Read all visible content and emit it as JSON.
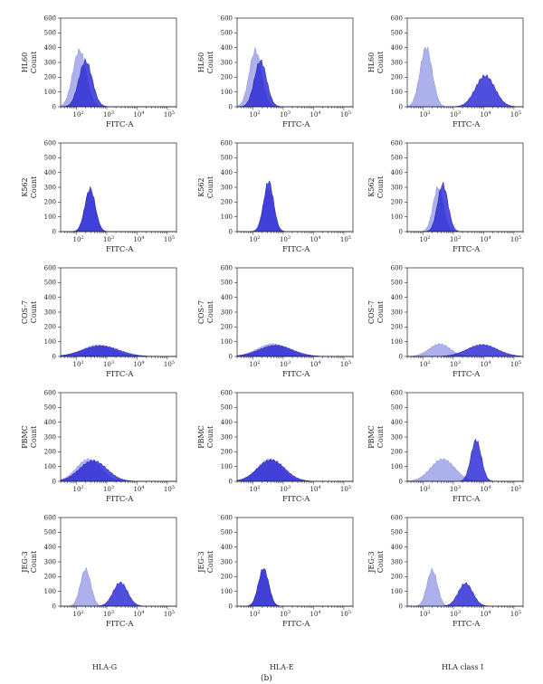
{
  "figure": {
    "panel_label": "(b)",
    "column_titles": [
      "HLA-G",
      "HLA-E",
      "HLA class I"
    ],
    "row_labels": [
      "HL60",
      "K562",
      "COS-7",
      "PBMC",
      "JEG-3"
    ],
    "colors": {
      "control": "#a3a8ea",
      "antibody": "#2a28d6",
      "axis": "#222222"
    }
  },
  "chart_data": [
    {
      "type": "area",
      "title": "",
      "ylabel": [
        "HL60",
        "Count"
      ],
      "xlabel": "FITC-A",
      "xscale": "log",
      "xlim": [
        30,
        200000
      ],
      "ylim": [
        0,
        600
      ],
      "yticks": [
        0,
        100,
        200,
        300,
        400,
        500,
        600
      ],
      "xticks": [
        "10^2",
        "10^3",
        "10^4",
        "10^5"
      ],
      "series": [
        {
          "log10_center": 2.1,
          "width": 0.22,
          "peak": 380
        },
        {
          "log10_center": 2.3,
          "width": 0.22,
          "peak": 310
        }
      ]
    },
    {
      "type": "area",
      "title": "",
      "ylabel": [
        "HL60",
        "Count"
      ],
      "xlabel": "FITC-A",
      "xscale": "log",
      "xlim": [
        30,
        200000
      ],
      "ylim": [
        0,
        600
      ],
      "yticks": [
        0,
        100,
        200,
        300,
        400,
        500,
        600
      ],
      "xticks": [
        "10^2",
        "10^3",
        "10^4",
        "10^5"
      ],
      "series": [
        {
          "log10_center": 2.08,
          "width": 0.2,
          "peak": 380
        },
        {
          "log10_center": 2.25,
          "width": 0.2,
          "peak": 310
        }
      ]
    },
    {
      "type": "area",
      "title": "",
      "ylabel": [
        "HL60",
        "Count"
      ],
      "xlabel": "FITC-A",
      "xscale": "log",
      "xlim": [
        30,
        200000
      ],
      "ylim": [
        0,
        600
      ],
      "yticks": [
        0,
        100,
        200,
        300,
        400,
        500,
        600
      ],
      "xticks": [
        "10^2",
        "10^3",
        "10^4",
        "10^5"
      ],
      "series": [
        {
          "log10_center": 2.1,
          "width": 0.2,
          "peak": 400
        },
        {
          "log10_center": 4.05,
          "width": 0.32,
          "peak": 210
        }
      ]
    },
    {
      "type": "area",
      "title": "",
      "ylabel": [
        "K562",
        "Count"
      ],
      "xlabel": "FITC-A",
      "xscale": "log",
      "xlim": [
        30,
        200000
      ],
      "ylim": [
        0,
        600
      ],
      "yticks": [
        0,
        100,
        200,
        300,
        400,
        500,
        600
      ],
      "xticks": [
        "10^2",
        "10^3",
        "10^4",
        "10^5"
      ],
      "series": [
        {
          "log10_center": 2.45,
          "width": 0.17,
          "peak": 280
        },
        {
          "log10_center": 2.45,
          "width": 0.17,
          "peak": 290
        }
      ]
    },
    {
      "type": "area",
      "title": "",
      "ylabel": [
        "K562",
        "Count"
      ],
      "xlabel": "FITC-A",
      "xscale": "log",
      "xlim": [
        30,
        200000
      ],
      "ylim": [
        0,
        600
      ],
      "yticks": [
        0,
        100,
        200,
        300,
        400,
        500,
        600
      ],
      "xticks": [
        "10^2",
        "10^3",
        "10^4",
        "10^5"
      ],
      "series": [
        {
          "log10_center": 2.5,
          "width": 0.17,
          "peak": 290
        },
        {
          "log10_center": 2.52,
          "width": 0.16,
          "peak": 340
        }
      ]
    },
    {
      "type": "area",
      "title": "",
      "ylabel": [
        "K562",
        "Count"
      ],
      "xlabel": "FITC-A",
      "xscale": "log",
      "xlim": [
        30,
        200000
      ],
      "ylim": [
        0,
        600
      ],
      "yticks": [
        0,
        100,
        200,
        300,
        400,
        500,
        600
      ],
      "xticks": [
        "10^2",
        "10^3",
        "10^4",
        "10^5"
      ],
      "series": [
        {
          "log10_center": 2.5,
          "width": 0.17,
          "peak": 300
        },
        {
          "log10_center": 2.65,
          "width": 0.17,
          "peak": 320
        }
      ]
    },
    {
      "type": "area",
      "title": "",
      "ylabel": [
        "COS-7",
        "Count"
      ],
      "xlabel": "FITC-A",
      "xscale": "log",
      "xlim": [
        30,
        200000
      ],
      "ylim": [
        0,
        600
      ],
      "yticks": [
        0,
        100,
        200,
        300,
        400,
        500,
        600
      ],
      "xticks": [
        "10^2",
        "10^3",
        "10^4",
        "10^5"
      ],
      "series": [
        {
          "log10_center": 2.7,
          "width": 0.5,
          "peak": 78
        },
        {
          "log10_center": 2.8,
          "width": 0.6,
          "peak": 72
        }
      ]
    },
    {
      "type": "area",
      "title": "",
      "ylabel": [
        "COS-7",
        "Count"
      ],
      "xlabel": "FITC-A",
      "xscale": "log",
      "xlim": [
        30,
        200000
      ],
      "ylim": [
        0,
        600
      ],
      "yticks": [
        0,
        100,
        200,
        300,
        400,
        500,
        600
      ],
      "xticks": [
        "10^2",
        "10^3",
        "10^4",
        "10^5"
      ],
      "series": [
        {
          "log10_center": 2.65,
          "width": 0.5,
          "peak": 85
        },
        {
          "log10_center": 2.75,
          "width": 0.55,
          "peak": 75
        }
      ]
    },
    {
      "type": "area",
      "title": "",
      "ylabel": [
        "COS-7",
        "Count"
      ],
      "xlabel": "FITC-A",
      "xscale": "log",
      "xlim": [
        30,
        200000
      ],
      "ylim": [
        0,
        600
      ],
      "yticks": [
        0,
        100,
        200,
        300,
        400,
        500,
        600
      ],
      "xticks": [
        "10^2",
        "10^3",
        "10^4",
        "10^5"
      ],
      "series": [
        {
          "log10_center": 2.55,
          "width": 0.35,
          "peak": 85
        },
        {
          "log10_center": 3.95,
          "width": 0.5,
          "peak": 80
        }
      ]
    },
    {
      "type": "area",
      "title": "",
      "ylabel": [
        "PBMC",
        "Count"
      ],
      "xlabel": "FITC-A",
      "xscale": "log",
      "xlim": [
        30,
        200000
      ],
      "ylim": [
        0,
        600
      ],
      "yticks": [
        0,
        100,
        200,
        300,
        400,
        500,
        600
      ],
      "xticks": [
        "10^2",
        "10^3",
        "10^4",
        "10^5"
      ],
      "series": [
        {
          "log10_center": 2.4,
          "width": 0.4,
          "peak": 150
        },
        {
          "log10_center": 2.55,
          "width": 0.45,
          "peak": 140
        }
      ]
    },
    {
      "type": "area",
      "title": "",
      "ylabel": [
        "PBMC",
        "Count"
      ],
      "xlabel": "FITC-A",
      "xscale": "log",
      "xlim": [
        30,
        200000
      ],
      "ylim": [
        0,
        600
      ],
      "yticks": [
        0,
        100,
        200,
        300,
        400,
        500,
        600
      ],
      "xticks": [
        "10^2",
        "10^3",
        "10^4",
        "10^5"
      ],
      "series": [
        {
          "log10_center": 2.55,
          "width": 0.4,
          "peak": 150
        },
        {
          "log10_center": 2.6,
          "width": 0.45,
          "peak": 145
        }
      ]
    },
    {
      "type": "area",
      "title": "",
      "ylabel": [
        "PBMC",
        "Count"
      ],
      "xlabel": "FITC-A",
      "xscale": "log",
      "xlim": [
        30,
        200000
      ],
      "ylim": [
        0,
        600
      ],
      "yticks": [
        0,
        100,
        200,
        300,
        400,
        500,
        600
      ],
      "xticks": [
        "10^2",
        "10^3",
        "10^4",
        "10^5"
      ],
      "series": [
        {
          "log10_center": 2.65,
          "width": 0.4,
          "peak": 150
        },
        {
          "log10_center": 3.75,
          "width": 0.17,
          "peak": 280
        }
      ]
    },
    {
      "type": "area",
      "title": "",
      "ylabel": [
        "JEG-3",
        "Count"
      ],
      "xlabel": "FITC-A",
      "xscale": "log",
      "xlim": [
        30,
        200000
      ],
      "ylim": [
        0,
        600
      ],
      "yticks": [
        0,
        100,
        200,
        300,
        400,
        500,
        600
      ],
      "xticks": [
        "10^2",
        "10^3",
        "10^4",
        "10^5"
      ],
      "series": [
        {
          "log10_center": 2.3,
          "width": 0.17,
          "peak": 250
        },
        {
          "log10_center": 3.45,
          "width": 0.24,
          "peak": 160
        }
      ]
    },
    {
      "type": "area",
      "title": "",
      "ylabel": [
        "JEG-3",
        "Count"
      ],
      "xlabel": "FITC-A",
      "xscale": "log",
      "xlim": [
        30,
        200000
      ],
      "ylim": [
        0,
        600
      ],
      "yticks": [
        0,
        100,
        200,
        300,
        400,
        500,
        600
      ],
      "xticks": [
        "10^2",
        "10^3",
        "10^4",
        "10^5"
      ],
      "series": [
        {
          "log10_center": 2.35,
          "width": 0.17,
          "peak": 245
        },
        {
          "log10_center": 2.35,
          "width": 0.17,
          "peak": 255
        }
      ]
    },
    {
      "type": "area",
      "title": "",
      "ylabel": [
        "JEG-3",
        "Count"
      ],
      "xlabel": "FITC-A",
      "xscale": "log",
      "xlim": [
        30,
        200000
      ],
      "ylim": [
        0,
        600
      ],
      "yticks": [
        0,
        100,
        200,
        300,
        400,
        500,
        600
      ],
      "xticks": [
        "10^2",
        "10^3",
        "10^4",
        "10^5"
      ],
      "series": [
        {
          "log10_center": 2.3,
          "width": 0.17,
          "peak": 245
        },
        {
          "log10_center": 3.4,
          "width": 0.24,
          "peak": 155
        }
      ]
    }
  ]
}
